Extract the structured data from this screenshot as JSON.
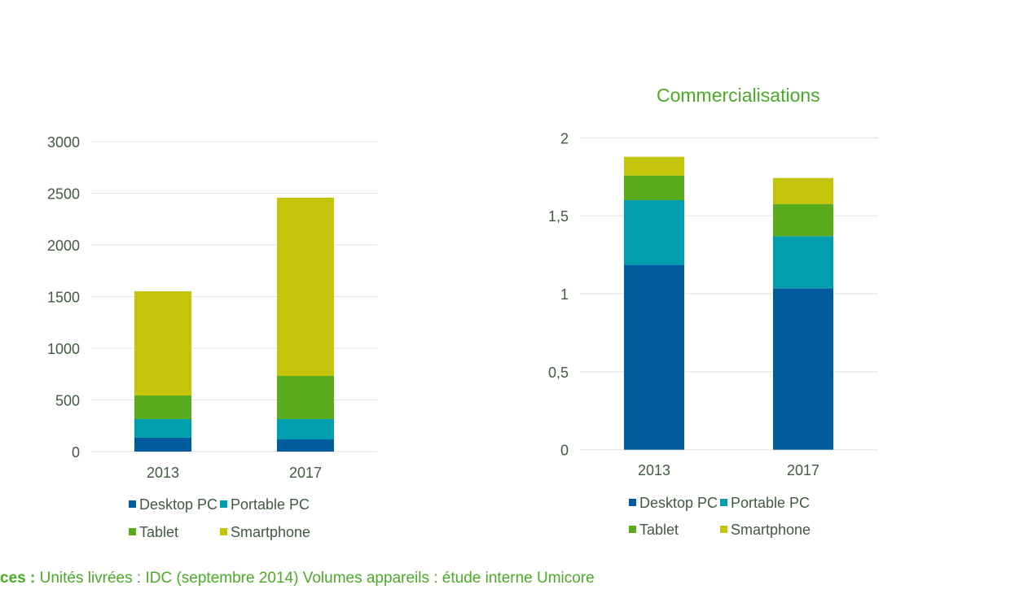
{
  "chart_data": [
    {
      "type": "bar",
      "stacked": true,
      "title": "",
      "xlabel": "",
      "ylabel": "",
      "categories": [
        "2013",
        "2017"
      ],
      "ylim": [
        0,
        3000
      ],
      "yticks": [
        0,
        500,
        1000,
        1500,
        2000,
        2500,
        3000
      ],
      "ytick_labels": [
        "0",
        "500",
        "1000",
        "1500",
        "2000",
        "2500",
        "3000"
      ],
      "grid": true,
      "legend_position": "bottom",
      "series": [
        {
          "name": "Desktop PC",
          "color": "#005c9c",
          "values": [
            134,
            118
          ]
        },
        {
          "name": "Portable PC",
          "color": "#009eaf",
          "values": [
            181,
            197
          ]
        },
        {
          "name": "Tablet",
          "color": "#5bab1e",
          "values": [
            228,
            417
          ]
        },
        {
          "name": "Smartphone",
          "color": "#c4c40a",
          "values": [
            1008,
            1725
          ]
        }
      ]
    },
    {
      "type": "bar",
      "stacked": true,
      "title": "Commercialisations",
      "xlabel": "",
      "ylabel": "",
      "categories": [
        "2013",
        "2017"
      ],
      "ylim": [
        0,
        2
      ],
      "yticks": [
        0,
        0.5,
        1,
        1.5,
        2
      ],
      "ytick_labels": [
        "0",
        "0,5",
        "1",
        "1,5",
        "2"
      ],
      "grid": true,
      "legend_position": "bottom",
      "series": [
        {
          "name": "Desktop PC",
          "color": "#005c9c",
          "values": [
            1.186,
            1.035
          ]
        },
        {
          "name": "Portable PC",
          "color": "#009eaf",
          "values": [
            0.414,
            0.334
          ]
        },
        {
          "name": "Tablet",
          "color": "#5bab1e",
          "values": [
            0.158,
            0.205
          ]
        },
        {
          "name": "Smartphone",
          "color": "#c4c40a",
          "values": [
            0.12,
            0.168
          ]
        }
      ]
    }
  ],
  "footer": {
    "label": "ces :",
    "text": " Unités livrées : IDC (septembre 2014) Volumes appareils : étude interne Umicore"
  }
}
